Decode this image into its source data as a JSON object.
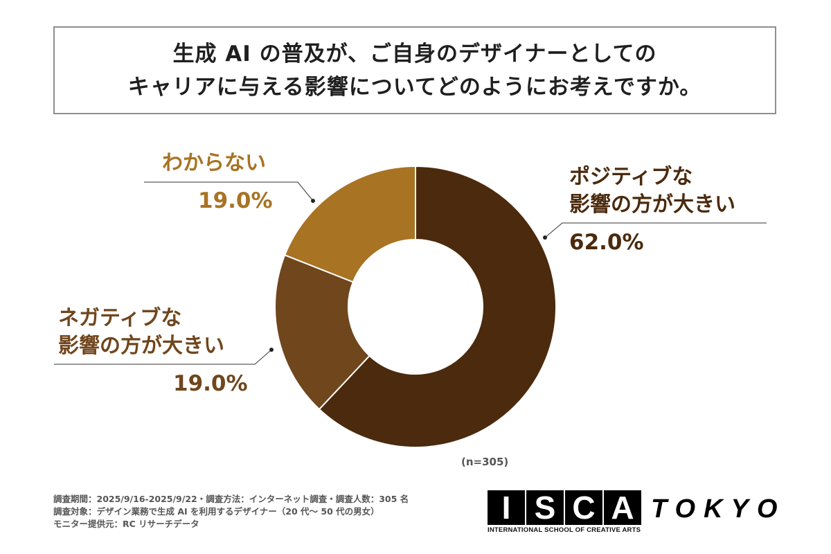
{
  "title": {
    "line1": "生成 AI の普及が、ご自身のデザイナーとしての",
    "line2": "キャリアに与える影響についてどのようにお考えですか。"
  },
  "chart_data": {
    "type": "pie",
    "donut": true,
    "categories": [
      "ポジティブな影響の方が大きい",
      "ネガティブな影響の方が大きい",
      "わからない"
    ],
    "values": [
      62.0,
      19.0,
      19.0
    ],
    "colors": [
      "#4b2a0d",
      "#70461d",
      "#a87323"
    ],
    "labels": [
      {
        "line1": "ポジティブな",
        "line2": "影響の方が大きい",
        "pct": "62.0%"
      },
      {
        "line1": "ネガティブな",
        "line2": "影響の方が大きい",
        "pct": "19.0%"
      },
      {
        "line1": "わからない",
        "pct": "19.0%"
      }
    ],
    "sample": "(n=305)"
  },
  "notes": [
    "調査期間：2025/9/16-2025/9/22・調査方法：インターネット調査・調査人数：305 名",
    "調査対象：デザイン業務で生成 AI を利用するデザイナー（20 代〜 50 代の男女）",
    "モニター提供元：RC リサーチデータ"
  ],
  "logo": {
    "letters": [
      "I",
      "S",
      "C",
      "A"
    ],
    "subtitle": "INTERNATIONAL SCHOOL OF CREATIVE ARTS",
    "city": "TOKYO"
  }
}
